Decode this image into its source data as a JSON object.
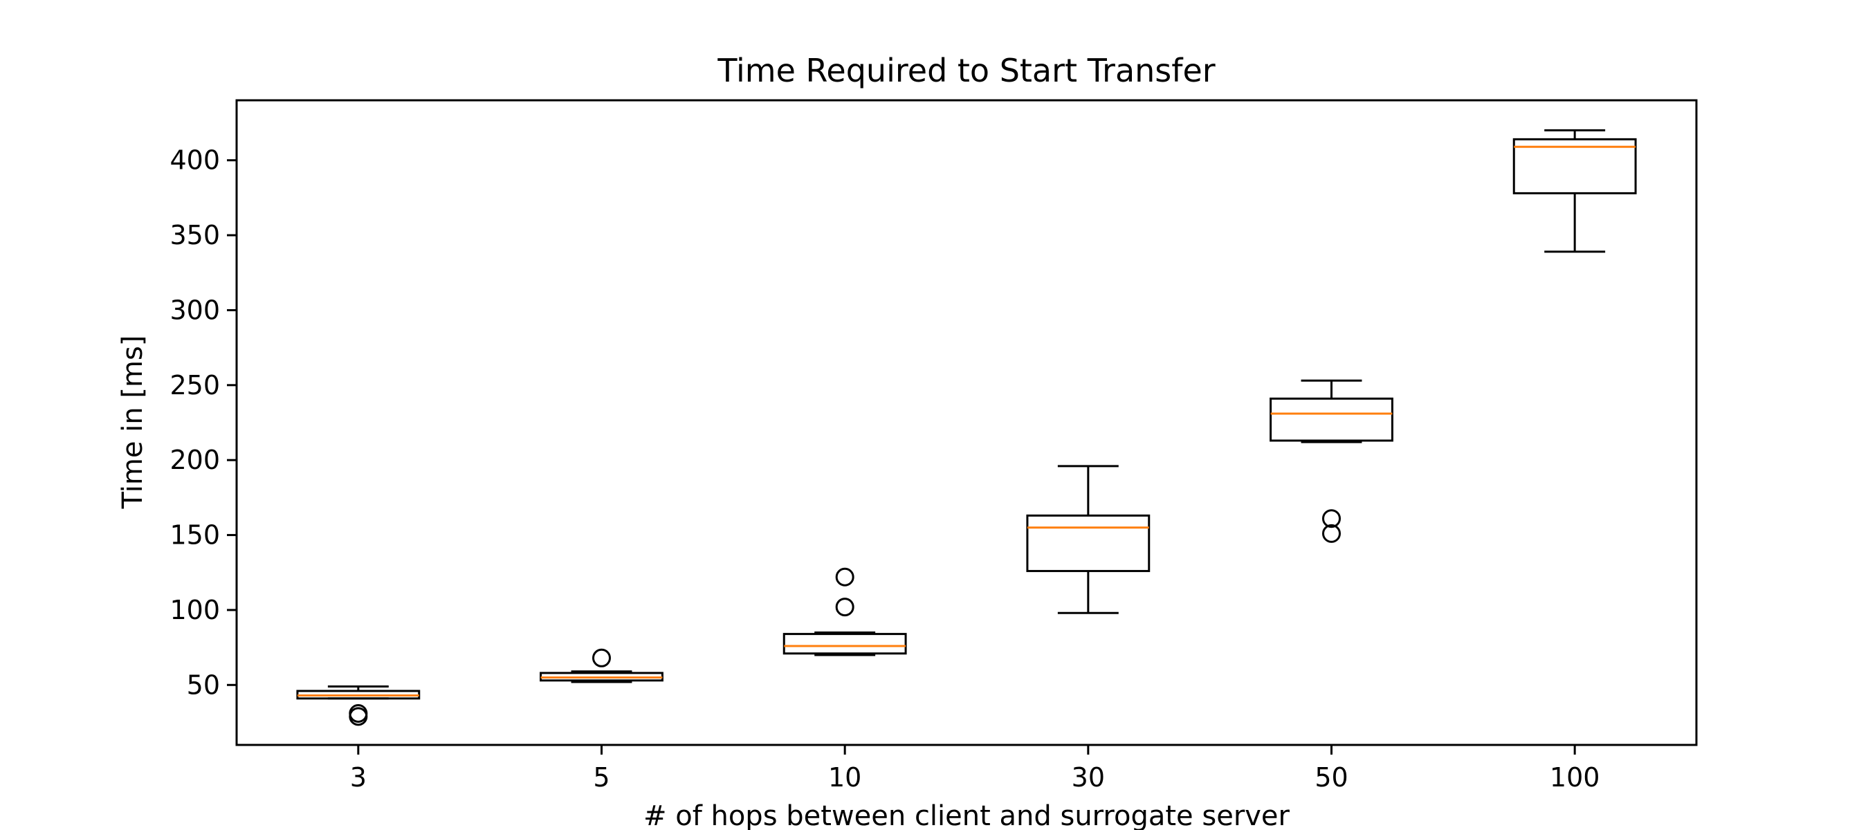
{
  "chart_data": {
    "type": "box",
    "title": "Time Required to Start Transfer",
    "xlabel": "# of hops between client and surrogate server",
    "ylabel": "Time in [ms]",
    "ylim": [
      10,
      440
    ],
    "yticks": [
      50,
      100,
      150,
      200,
      250,
      300,
      350,
      400
    ],
    "grid": false,
    "categories": [
      "3",
      "5",
      "10",
      "30",
      "50",
      "100"
    ],
    "boxes": [
      {
        "category": "3",
        "whisker_low": 41,
        "q1": 41,
        "median": 43,
        "q3": 46,
        "whisker_high": 49,
        "outliers": [
          29,
          31
        ]
      },
      {
        "category": "5",
        "whisker_low": 52,
        "q1": 53,
        "median": 55,
        "q3": 58,
        "whisker_high": 59,
        "outliers": [
          68
        ]
      },
      {
        "category": "10",
        "whisker_low": 70,
        "q1": 71,
        "median": 76,
        "q3": 84,
        "whisker_high": 85,
        "outliers": [
          102,
          122
        ]
      },
      {
        "category": "30",
        "whisker_low": 98,
        "q1": 126,
        "median": 155,
        "q3": 163,
        "whisker_high": 196,
        "outliers": []
      },
      {
        "category": "50",
        "whisker_low": 212,
        "q1": 213,
        "median": 231,
        "q3": 241,
        "whisker_high": 253,
        "outliers": [
          151,
          161
        ]
      },
      {
        "category": "100",
        "whisker_low": 339,
        "q1": 378,
        "median": 409,
        "q3": 414,
        "whisker_high": 420,
        "outliers": []
      }
    ],
    "colors": {
      "box": "#000000",
      "median": "#ff7f0e",
      "outlier": "#000000"
    }
  }
}
